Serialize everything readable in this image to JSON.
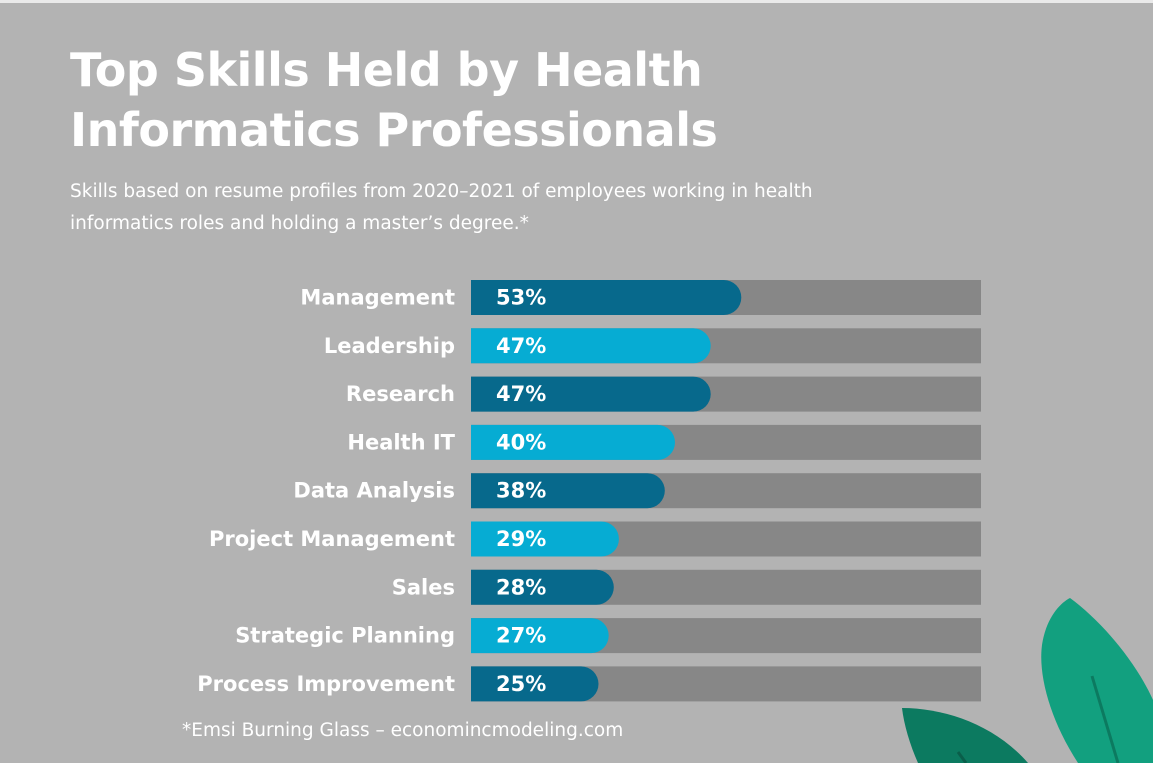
{
  "header": {
    "title": "Top Skills Held by Health Informatics Professionals",
    "subtitle": "Skills based on resume profiles from 2020–2021 of employees working in health informatics roles and holding a master’s degree.*"
  },
  "footnote": "*Emsi Burning Glass – economincmodeling.com",
  "colors": {
    "background": "#b3b3b3",
    "track": "#878787",
    "bar_dark": "#07698c",
    "bar_light": "#06acd3",
    "text": "#ffffff",
    "leaf_green": "#12a07f",
    "leaf_dark": "#0c7a60"
  },
  "decoration": {
    "icon": "leaf-icon"
  },
  "chart_data": {
    "type": "bar",
    "orientation": "horizontal",
    "categories": [
      "Management",
      "Leadership",
      "Research",
      "Health IT",
      "Data Analysis",
      "Project Management",
      "Sales",
      "Strategic Planning",
      "Process Improvement"
    ],
    "values": [
      53,
      47,
      47,
      40,
      38,
      29,
      28,
      27,
      25
    ],
    "value_labels": [
      "53%",
      "47%",
      "47%",
      "40%",
      "38%",
      "29%",
      "28%",
      "27%",
      "25%"
    ],
    "bar_colors": [
      "dark",
      "light",
      "dark",
      "light",
      "dark",
      "light",
      "dark",
      "light",
      "dark"
    ],
    "xlim": [
      0,
      100
    ],
    "grid": false,
    "legend": "none"
  }
}
